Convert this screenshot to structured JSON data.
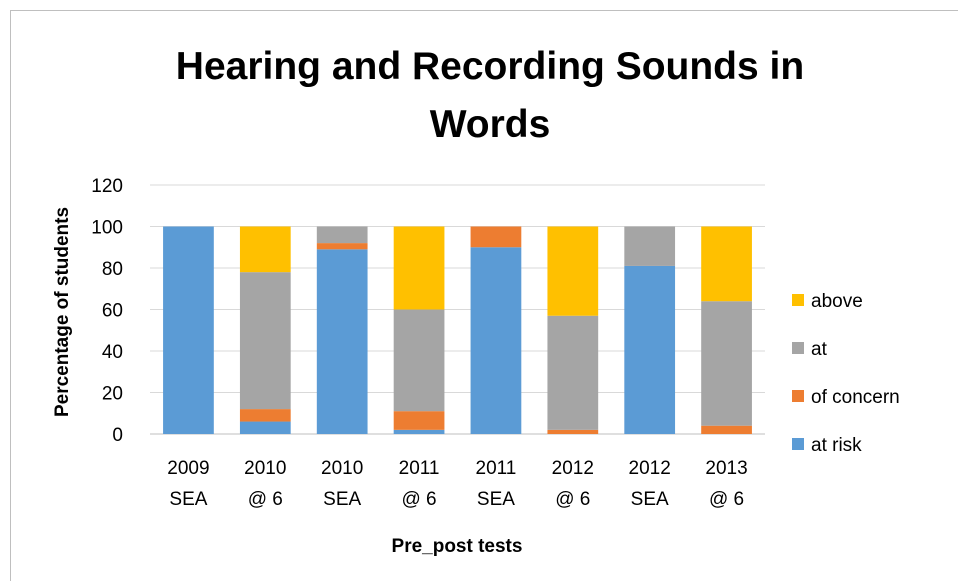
{
  "chart_data": {
    "type": "bar",
    "stacked": true,
    "title": "Hearing and Recording Sounds in Words",
    "xlabel": "Pre_post tests",
    "ylabel": "Percentage of students",
    "ylim": [
      0,
      120
    ],
    "yticks": [
      0,
      20,
      40,
      60,
      80,
      100,
      120
    ],
    "grid": true,
    "legend_position": "right",
    "categories": [
      [
        "2009",
        "SEA"
      ],
      [
        "2010",
        "@ 6"
      ],
      [
        "2010",
        "SEA"
      ],
      [
        "2011",
        "@ 6"
      ],
      [
        "2011",
        "SEA"
      ],
      [
        "2012",
        "@ 6"
      ],
      [
        "2012",
        "SEA"
      ],
      [
        "2013",
        "@ 6"
      ]
    ],
    "series": [
      {
        "name": "at risk",
        "color": "#5b9bd5",
        "values": [
          100,
          6,
          89,
          2,
          90,
          0,
          81,
          0
        ]
      },
      {
        "name": "of concern",
        "color": "#ed7d31",
        "values": [
          0,
          6,
          3,
          9,
          10,
          2,
          0,
          4
        ]
      },
      {
        "name": "at",
        "color": "#a5a5a5",
        "values": [
          0,
          66,
          8,
          49,
          0,
          55,
          19,
          60
        ]
      },
      {
        "name": "above",
        "color": "#ffc000",
        "values": [
          0,
          22,
          0,
          40,
          0,
          43,
          0,
          36
        ]
      }
    ],
    "legend_order": [
      "above",
      "at",
      "of concern",
      "at risk"
    ]
  }
}
